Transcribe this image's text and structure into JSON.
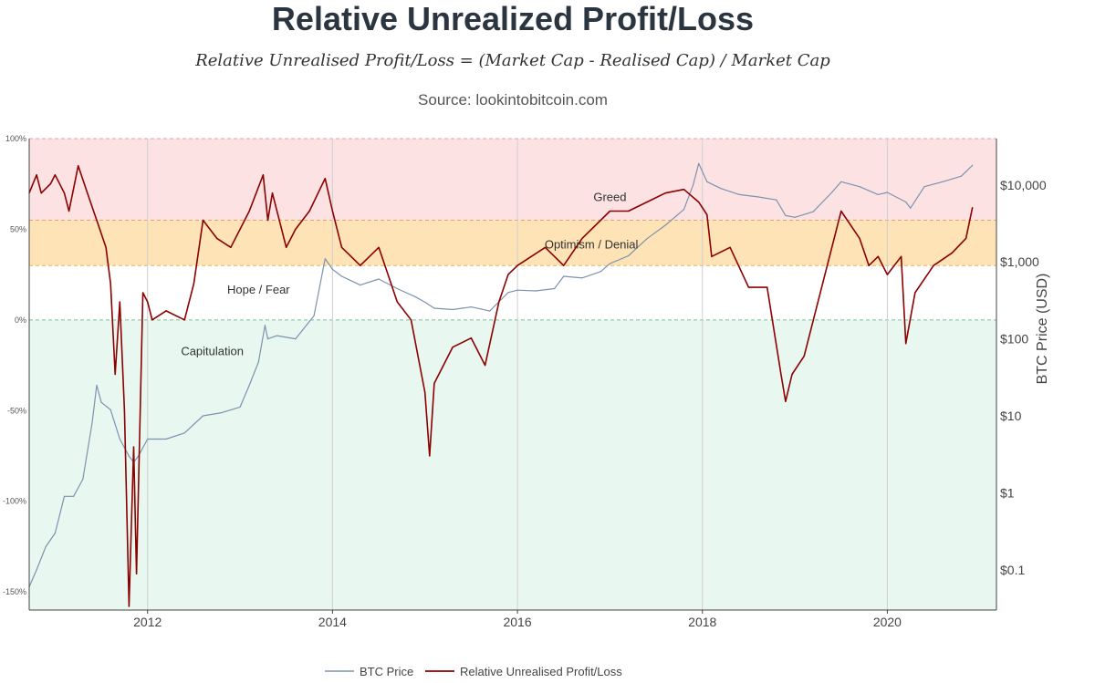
{
  "chart_data": {
    "type": "line",
    "title": "Relative Unrealized Profit/Loss",
    "subtitle": "Relative Unrealised Profit/Loss = (Market Cap - Realised Cap) / Market Cap",
    "source": "Source: lookintobitcoin.com",
    "y2label": "BTC Price (USD)",
    "left_axis": {
      "ticks": [
        -150,
        -100,
        -50,
        0,
        50,
        100
      ],
      "tick_labels": [
        "-150%",
        "-100%",
        "-50%",
        "0%",
        "50%",
        "100%"
      ],
      "range": [
        -160,
        100
      ]
    },
    "right_axis": {
      "scale": "log",
      "ticks": [
        0.1,
        1,
        10,
        100,
        1000,
        10000
      ],
      "tick_labels": [
        "$0.1",
        "$1",
        "$10",
        "$100",
        "$1,000",
        "$10,000"
      ],
      "range": [
        0.03,
        40000
      ]
    },
    "x_axis": {
      "ticks": [
        2012,
        2014,
        2016,
        2018,
        2020
      ],
      "tick_labels": [
        "2012",
        "2014",
        "2016",
        "2018",
        "2020"
      ],
      "range": [
        2010.72,
        2021.18
      ]
    },
    "zones": [
      {
        "name": "Greed",
        "from": 55,
        "to": 100,
        "color": "#fde2e4"
      },
      {
        "name": "Optimism / Denial",
        "from": 30,
        "to": 55,
        "color": "#fde3b5"
      },
      {
        "name": "Hope / Fear",
        "from": 0,
        "to": 30,
        "color": "#ffffff"
      },
      {
        "name": "Capitulation",
        "from": -160,
        "to": 0,
        "color": "#e8f7ef"
      }
    ],
    "zone_labels": [
      {
        "text": "Greed",
        "x": 2017.0,
        "y": 68
      },
      {
        "text": "Optimism / Denial",
        "x": 2016.8,
        "y": 42
      },
      {
        "text": "Hope / Fear",
        "x": 2013.2,
        "y": 17
      },
      {
        "text": "Capitulation",
        "x": 2012.7,
        "y": -17
      }
    ],
    "series": [
      {
        "name": "BTC Price",
        "axis": "right",
        "color": "#7d93ad",
        "x": [
          2010.72,
          2010.8,
          2010.9,
          2011.0,
          2011.1,
          2011.2,
          2011.3,
          2011.4,
          2011.45,
          2011.5,
          2011.6,
          2011.7,
          2011.8,
          2011.85,
          2011.9,
          2012.0,
          2012.2,
          2012.4,
          2012.6,
          2012.8,
          2013.0,
          2013.1,
          2013.2,
          2013.27,
          2013.3,
          2013.4,
          2013.6,
          2013.8,
          2013.92,
          2014.0,
          2014.1,
          2014.3,
          2014.5,
          2014.7,
          2014.9,
          2015.0,
          2015.1,
          2015.3,
          2015.5,
          2015.7,
          2015.9,
          2016.0,
          2016.2,
          2016.4,
          2016.5,
          2016.7,
          2016.9,
          2017.0,
          2017.2,
          2017.4,
          2017.6,
          2017.8,
          2017.9,
          2017.96,
          2018.05,
          2018.2,
          2018.4,
          2018.6,
          2018.8,
          2018.9,
          2019.0,
          2019.2,
          2019.4,
          2019.5,
          2019.7,
          2019.9,
          2020.0,
          2020.2,
          2020.25,
          2020.4,
          2020.6,
          2020.8,
          2020.92
        ],
        "values": [
          0.06,
          0.1,
          0.2,
          0.3,
          0.9,
          0.9,
          1.5,
          8,
          25,
          15,
          12,
          5,
          3,
          2.5,
          3,
          5,
          5,
          6,
          10,
          11,
          13,
          25,
          50,
          150,
          100,
          110,
          100,
          200,
          1100,
          800,
          650,
          500,
          600,
          450,
          350,
          300,
          250,
          240,
          260,
          230,
          400,
          430,
          420,
          450,
          650,
          620,
          750,
          950,
          1200,
          2000,
          3000,
          4800,
          10000,
          19000,
          11000,
          9000,
          7500,
          7000,
          6400,
          4000,
          3800,
          4500,
          8000,
          11000,
          9500,
          7500,
          8000,
          6000,
          5000,
          9500,
          11000,
          13000,
          18000
        ]
      },
      {
        "name": "Relative Unrealised Profit/Loss",
        "axis": "left",
        "color": "#8b0000",
        "x": [
          2010.72,
          2010.8,
          2010.85,
          2010.95,
          2011.0,
          2011.1,
          2011.15,
          2011.25,
          2011.35,
          2011.45,
          2011.55,
          2011.6,
          2011.65,
          2011.7,
          2011.75,
          2011.8,
          2011.85,
          2011.88,
          2011.95,
          2012.0,
          2012.05,
          2012.2,
          2012.4,
          2012.5,
          2012.6,
          2012.75,
          2012.9,
          2013.0,
          2013.1,
          2013.25,
          2013.3,
          2013.35,
          2013.5,
          2013.6,
          2013.75,
          2013.92,
          2014.0,
          2014.1,
          2014.3,
          2014.5,
          2014.7,
          2014.85,
          2015.0,
          2015.05,
          2015.1,
          2015.3,
          2015.5,
          2015.65,
          2015.8,
          2015.9,
          2016.0,
          2016.3,
          2016.5,
          2016.7,
          2016.9,
          2017.0,
          2017.2,
          2017.4,
          2017.6,
          2017.8,
          2017.96,
          2018.05,
          2018.1,
          2018.3,
          2018.5,
          2018.7,
          2018.85,
          2018.9,
          2018.97,
          2019.1,
          2019.3,
          2019.5,
          2019.7,
          2019.8,
          2019.9,
          2020.0,
          2020.15,
          2020.2,
          2020.3,
          2020.5,
          2020.7,
          2020.85,
          2020.92
        ],
        "values": [
          70,
          80,
          70,
          75,
          80,
          70,
          60,
          85,
          70,
          55,
          40,
          20,
          -30,
          10,
          -50,
          -158,
          -70,
          -140,
          15,
          10,
          0,
          5,
          0,
          20,
          55,
          45,
          40,
          50,
          60,
          80,
          55,
          70,
          40,
          50,
          60,
          78,
          60,
          40,
          30,
          40,
          10,
          0,
          -40,
          -75,
          -35,
          -15,
          -10,
          -25,
          10,
          25,
          30,
          40,
          30,
          45,
          55,
          60,
          60,
          65,
          70,
          72,
          65,
          58,
          35,
          40,
          18,
          18,
          -30,
          -45,
          -30,
          -20,
          20,
          60,
          45,
          30,
          35,
          25,
          35,
          -13,
          15,
          30,
          37,
          45,
          62
        ]
      }
    ],
    "legend": {
      "placement": "bottom-center"
    }
  }
}
